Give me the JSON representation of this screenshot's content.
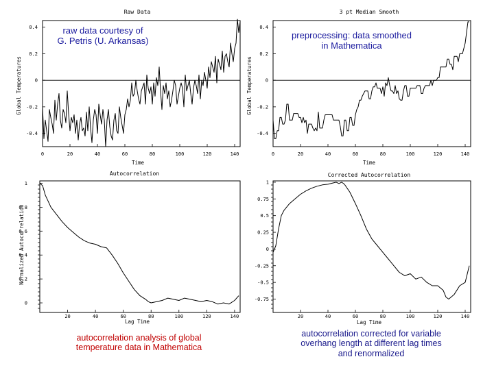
{
  "colors": {
    "annotation_blue": "#1a1a9e",
    "annotation_red": "#c00000",
    "annotation_navy": "#1a1a8c"
  },
  "annotations": {
    "top_left": {
      "line1": "raw data courtesy of",
      "line2": "G. Petris (U. Arkansas)"
    },
    "top_right": {
      "line1": "preprocessing: data smoothed",
      "line2": "in Mathematica"
    },
    "bottom_left": {
      "line1": "autocorrelation analysis of global",
      "line2": "temperature data in Mathematica"
    },
    "bottom_right": {
      "line1": "autocorrelation corrected for variable",
      "line2": "overhang length at different lag times",
      "line3": "and renormalized"
    }
  },
  "chart_data": [
    {
      "id": "raw",
      "type": "line",
      "title": "Raw Data",
      "xlabel": "Time",
      "ylabel": "Global Temperatures",
      "xlim": [
        0,
        144
      ],
      "ylim": [
        -0.5,
        0.45
      ],
      "xticks": [
        0,
        20,
        40,
        60,
        80,
        100,
        120,
        140
      ],
      "xtick_labels": [
        "0",
        "20",
        "40",
        "60",
        "80",
        "100",
        "120",
        "140"
      ],
      "yticks": [
        -0.4,
        -0.2,
        0,
        0.2,
        0.4
      ],
      "ytick_labels": [
        "-0.4",
        "-0.2",
        "0",
        "0.2",
        "0.4"
      ],
      "reference_line": 0,
      "values": [
        -0.2,
        -0.44,
        -0.3,
        -0.38,
        -0.46,
        -0.22,
        -0.28,
        -0.33,
        -0.4,
        -0.15,
        -0.3,
        -0.18,
        -0.1,
        -0.3,
        -0.36,
        -0.22,
        -0.25,
        -0.32,
        -0.08,
        -0.25,
        -0.38,
        -0.28,
        -0.32,
        -0.26,
        -0.4,
        -0.3,
        -0.45,
        -0.33,
        -0.28,
        -0.38,
        -0.36,
        -0.42,
        -0.24,
        -0.38,
        -0.2,
        -0.36,
        -0.47,
        -0.3,
        -0.22,
        -0.26,
        -0.4,
        -0.18,
        -0.26,
        -0.33,
        -0.22,
        -0.3,
        -0.5,
        -0.3,
        -0.22,
        -0.35,
        -0.42,
        -0.45,
        -0.3,
        -0.25,
        -0.38,
        -0.4,
        -0.2,
        -0.28,
        -0.34,
        -0.4,
        -0.26,
        -0.22,
        -0.14,
        -0.2,
        -0.15,
        -0.02,
        -0.12,
        -0.1,
        0.0,
        -0.08,
        -0.14,
        -0.18,
        -0.08,
        -0.05,
        -0.02,
        -0.18,
        0.04,
        -0.06,
        -0.1,
        -0.05,
        -0.18,
        -0.02,
        -0.12,
        0.02,
        -0.04,
        0.1,
        -0.08,
        -0.22,
        -0.04,
        -0.1,
        -0.02,
        -0.14,
        -0.08,
        -0.2,
        -0.15,
        -0.08,
        0.0,
        -0.04,
        -0.18,
        -0.12,
        -0.06,
        -0.02,
        -0.06,
        -0.2,
        0.04,
        -0.08,
        -0.04,
        0.0,
        -0.1,
        -0.18,
        -0.06,
        0.0,
        -0.04,
        -0.1,
        0.04,
        -0.14,
        0.0,
        -0.04,
        0.06,
        0.0,
        -0.06,
        0.1,
        0.02,
        0.14,
        0.1,
        0.06,
        0.18,
        -0.02,
        0.16,
        0.12,
        0.08,
        0.22,
        0.06,
        0.18,
        0.2,
        0.14,
        0.1,
        0.28,
        0.2,
        0.14,
        0.24,
        0.28,
        0.46,
        0.36,
        0.44
      ]
    },
    {
      "id": "smooth",
      "type": "line",
      "title": "3 pt Median Smooth",
      "xlabel": "Time",
      "ylabel": "Global Temperatures",
      "xlim": [
        0,
        144
      ],
      "ylim": [
        -0.5,
        0.45
      ],
      "xticks": [
        0,
        20,
        40,
        60,
        80,
        100,
        120,
        140
      ],
      "xtick_labels": [
        "0",
        "20",
        "40",
        "60",
        "80",
        "100",
        "120",
        "140"
      ],
      "yticks": [
        -0.4,
        -0.2,
        0,
        0.2,
        0.4
      ],
      "ytick_labels": [
        "-0.4",
        "-0.2",
        "0",
        "0.2",
        "0.4"
      ],
      "reference_line": 0,
      "values": [
        -0.3,
        -0.44,
        -0.44,
        -0.38,
        -0.38,
        -0.28,
        -0.28,
        -0.33,
        -0.33,
        -0.3,
        -0.18,
        -0.18,
        -0.3,
        -0.3,
        -0.3,
        -0.25,
        -0.25,
        -0.25,
        -0.25,
        -0.28,
        -0.28,
        -0.32,
        -0.28,
        -0.32,
        -0.3,
        -0.4,
        -0.33,
        -0.33,
        -0.33,
        -0.36,
        -0.38,
        -0.36,
        -0.38,
        -0.24,
        -0.36,
        -0.36,
        -0.36,
        -0.3,
        -0.26,
        -0.26,
        -0.26,
        -0.26,
        -0.26,
        -0.26,
        -0.3,
        -0.3,
        -0.3,
        -0.3,
        -0.3,
        -0.35,
        -0.42,
        -0.42,
        -0.3,
        -0.3,
        -0.38,
        -0.38,
        -0.28,
        -0.28,
        -0.34,
        -0.34,
        -0.26,
        -0.22,
        -0.2,
        -0.15,
        -0.15,
        -0.12,
        -0.1,
        -0.08,
        -0.08,
        -0.08,
        -0.14,
        -0.14,
        -0.08,
        -0.05,
        -0.05,
        -0.02,
        -0.06,
        -0.06,
        -0.06,
        -0.1,
        -0.05,
        -0.12,
        -0.02,
        -0.04,
        0.02,
        -0.04,
        -0.08,
        -0.08,
        -0.1,
        -0.04,
        -0.1,
        -0.08,
        -0.14,
        -0.15,
        -0.15,
        -0.08,
        -0.04,
        -0.04,
        -0.12,
        -0.12,
        -0.06,
        -0.06,
        -0.06,
        -0.06,
        -0.06,
        -0.04,
        -0.04,
        -0.04,
        -0.1,
        -0.1,
        -0.06,
        -0.04,
        -0.04,
        -0.04,
        -0.04,
        0.0,
        -0.04,
        0.0,
        0.0,
        0.0,
        0.02,
        0.02,
        0.1,
        0.1,
        0.1,
        0.1,
        0.1,
        0.16,
        0.16,
        0.12,
        0.12,
        0.08,
        0.18,
        0.18,
        0.18,
        0.14,
        0.2,
        0.2,
        0.2,
        0.24,
        0.28,
        0.36,
        0.44,
        0.44
      ]
    },
    {
      "id": "autocorr",
      "type": "line",
      "title": "Autocorrelation",
      "xlabel": "Lag Time",
      "ylabel": "Normalized Autocorrelation",
      "xlim": [
        0,
        144
      ],
      "ylim": [
        -0.08,
        1.02
      ],
      "xticks": [
        20,
        40,
        60,
        80,
        100,
        120,
        140
      ],
      "xtick_labels": [
        "20",
        "40",
        "60",
        "80",
        "100",
        "120",
        "140"
      ],
      "yticks": [
        0,
        0.2,
        0.4,
        0.6,
        0.8,
        1
      ],
      "ytick_labels": [
        "0",
        "0.2",
        "0.4",
        "0.6",
        "0.8",
        "1"
      ],
      "x": [
        0,
        2,
        4,
        6,
        8,
        12,
        16,
        20,
        24,
        28,
        32,
        36,
        40,
        44,
        48,
        52,
        56,
        60,
        64,
        68,
        72,
        76,
        78,
        80,
        84,
        88,
        92,
        96,
        100,
        104,
        108,
        112,
        116,
        120,
        124,
        128,
        132,
        136,
        140,
        143
      ],
      "values": [
        1.0,
        0.98,
        0.9,
        0.85,
        0.8,
        0.74,
        0.68,
        0.63,
        0.59,
        0.55,
        0.52,
        0.5,
        0.49,
        0.47,
        0.46,
        0.4,
        0.33,
        0.25,
        0.18,
        0.11,
        0.06,
        0.03,
        0.01,
        0.0,
        0.01,
        0.02,
        0.04,
        0.03,
        0.02,
        0.04,
        0.03,
        0.02,
        0.01,
        0.02,
        0.01,
        -0.01,
        0.0,
        -0.01,
        0.02,
        0.06
      ]
    },
    {
      "id": "corrected",
      "type": "line",
      "title": "Corrected Autocorrelation",
      "xlabel": "Lag Time",
      "ylabel": "",
      "xlim": [
        0,
        144
      ],
      "ylim": [
        -0.95,
        1.02
      ],
      "xticks": [
        20,
        40,
        60,
        80,
        100,
        120,
        140
      ],
      "xtick_labels": [
        "20",
        "40",
        "60",
        "80",
        "100",
        "120",
        "140"
      ],
      "yticks": [
        -0.75,
        -0.5,
        -0.25,
        0,
        0.25,
        0.5,
        0.75,
        1
      ],
      "ytick_labels": [
        "-0.75",
        "-0.5",
        "-0.25",
        "0",
        "0.25",
        "0.5",
        "0.75",
        "1"
      ],
      "x": [
        0,
        2,
        4,
        6,
        8,
        12,
        16,
        20,
        24,
        28,
        32,
        36,
        40,
        44,
        46,
        48,
        50,
        52,
        56,
        60,
        64,
        68,
        72,
        76,
        80,
        84,
        88,
        92,
        96,
        100,
        104,
        108,
        112,
        116,
        120,
        124,
        126,
        128,
        132,
        136,
        140,
        143
      ],
      "values": [
        -0.05,
        0.05,
        0.3,
        0.5,
        0.58,
        0.68,
        0.75,
        0.82,
        0.87,
        0.91,
        0.94,
        0.96,
        0.97,
        0.99,
        1.0,
        0.98,
        1.0,
        0.97,
        0.85,
        0.68,
        0.5,
        0.3,
        0.15,
        0.05,
        -0.05,
        -0.15,
        -0.25,
        -0.35,
        -0.4,
        -0.37,
        -0.45,
        -0.42,
        -0.5,
        -0.55,
        -0.55,
        -0.62,
        -0.72,
        -0.75,
        -0.68,
        -0.55,
        -0.5,
        -0.25
      ]
    }
  ]
}
